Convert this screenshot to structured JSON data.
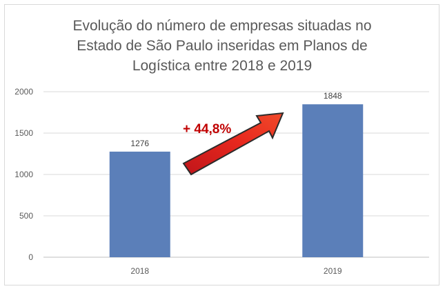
{
  "chart_data": {
    "type": "bar",
    "title_lines": [
      "Evolução do número de empresas situadas no",
      "Estado de São Paulo inseridas em Planos de",
      "Logística entre 2018 e 2019"
    ],
    "categories": [
      "2018",
      "2019"
    ],
    "values": [
      1276,
      1848
    ],
    "data_labels": [
      "1276",
      "1848"
    ],
    "ylim": [
      0,
      2000
    ],
    "yticks": [
      0,
      500,
      1000,
      1500,
      2000
    ],
    "grid": true,
    "bar_color": "#5b7fb9",
    "annotation": {
      "text": "+ 44,8%",
      "color": "#c00000",
      "arrow_color": "#e8281e"
    }
  }
}
